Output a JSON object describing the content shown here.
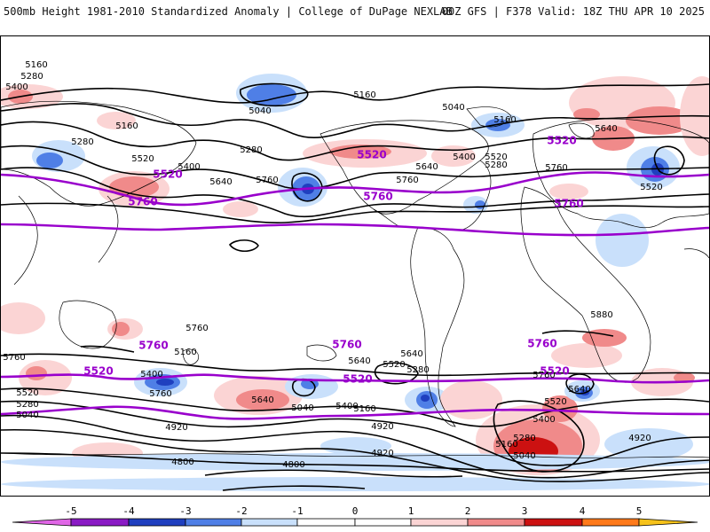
{
  "header": {
    "left": "500mb Height 1981-2010 Standardized Anomaly | College of DuPage NEXLAB",
    "right": "00Z GFS | F378 Valid: 18Z THU APR 10 2025"
  },
  "colors": {
    "neg5": "#e066e6",
    "neg4": "#8a1ac4",
    "neg3": "#1f3fbf",
    "neg2": "#4f7fe6",
    "neg1": "#c9e0fb",
    "zero": "#ffffff",
    "pos1": "#fbd4d4",
    "pos2": "#f08a8a",
    "pos3": "#cc1111",
    "pos4": "#ff7a1a",
    "pos5": "#f6c21a",
    "contour": "#000000",
    "highlight_contour": "#9900cc",
    "land_outline": "#000000"
  },
  "colorbar": {
    "ticks": [
      "-5",
      "-4",
      "-3",
      "-2",
      "-1",
      "0",
      "1",
      "2",
      "3",
      "4",
      "5"
    ]
  },
  "map": {
    "type": "global 500mb geopotential height contours with standardized anomaly shading",
    "contour_labels": [
      {
        "text": "5160"
      },
      {
        "text": "5280"
      },
      {
        "text": "5400"
      },
      {
        "text": "5160"
      },
      {
        "text": "5040"
      },
      {
        "text": "5160"
      },
      {
        "text": "5280"
      },
      {
        "text": "5280"
      },
      {
        "text": "5520"
      },
      {
        "text": "5400"
      },
      {
        "text": "5640"
      },
      {
        "text": "5760"
      },
      {
        "text": "5760"
      },
      {
        "text": "5640"
      },
      {
        "text": "5400"
      },
      {
        "text": "5040"
      },
      {
        "text": "5160"
      },
      {
        "text": "5280"
      },
      {
        "text": "5520"
      },
      {
        "text": "5640"
      },
      {
        "text": "5760"
      },
      {
        "text": "5520"
      },
      {
        "text": "5880"
      },
      {
        "text": "5760"
      },
      {
        "text": "5760"
      },
      {
        "text": "5400"
      },
      {
        "text": "5160"
      },
      {
        "text": "5640"
      },
      {
        "text": "5520"
      },
      {
        "text": "5280"
      },
      {
        "text": "5040"
      },
      {
        "text": "5640"
      },
      {
        "text": "5520"
      },
      {
        "text": "5400"
      },
      {
        "text": "5040"
      },
      {
        "text": "5160"
      },
      {
        "text": "5760"
      },
      {
        "text": "5640"
      },
      {
        "text": "5280"
      },
      {
        "text": "4920"
      },
      {
        "text": "4920"
      },
      {
        "text": "4800"
      },
      {
        "text": "4920"
      },
      {
        "text": "4800"
      },
      {
        "text": "5520"
      },
      {
        "text": "5400"
      },
      {
        "text": "5280"
      },
      {
        "text": "5160"
      },
      {
        "text": "5040"
      },
      {
        "text": "4920"
      },
      {
        "text": "5640"
      },
      {
        "text": "5760"
      }
    ],
    "highlight_labels": [
      {
        "text": "5520"
      },
      {
        "text": "5760"
      },
      {
        "text": "5520"
      },
      {
        "text": "5760"
      },
      {
        "text": "5520"
      },
      {
        "text": "5760"
      },
      {
        "text": "5760"
      },
      {
        "text": "5520"
      },
      {
        "text": "5760"
      },
      {
        "text": "5520"
      },
      {
        "text": "5760"
      },
      {
        "text": "5520"
      }
    ]
  }
}
